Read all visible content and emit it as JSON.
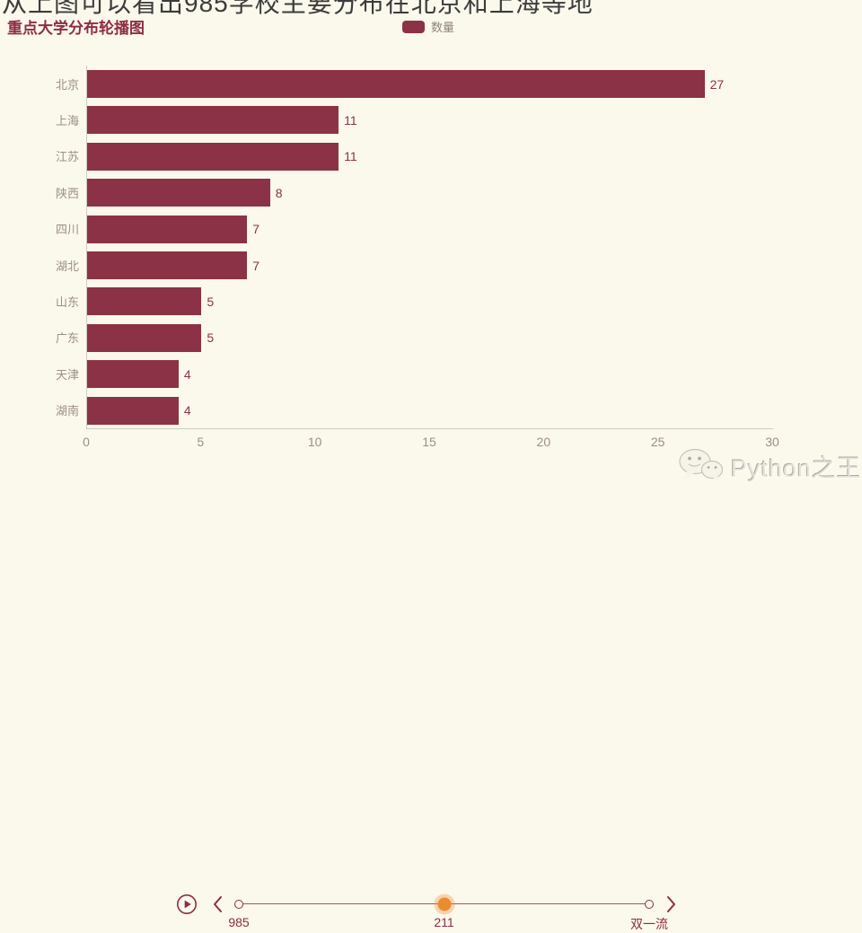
{
  "page": {
    "clipped_top_text": "从上图可以看出985学校主要分布在北京和上海等地",
    "title": "重点大学分布轮播图",
    "watermark_text": "Python之王"
  },
  "legend": {
    "label": "数量"
  },
  "colors": {
    "background": "#FBF8EC",
    "bar": "#8C3246",
    "title": "#8D2D44",
    "axis_label": "#9C9084",
    "legend_label": "#8F8576",
    "axis_line": "#CFCBC0",
    "timeline": "#8B2E43",
    "timeline_line": "#9B5A68",
    "timeline_active": "#EC8C30",
    "top_text": "#3C3C3C"
  },
  "chart_data": {
    "type": "bar",
    "orientation": "horizontal",
    "title": "重点大学分布轮播图",
    "categories": [
      "北京",
      "上海",
      "江苏",
      "陕西",
      "四川",
      "湖北",
      "山东",
      "广东",
      "天津",
      "湖南"
    ],
    "series": [
      {
        "name": "数量",
        "values": [
          27,
          11,
          11,
          8,
          7,
          7,
          5,
          5,
          4,
          4
        ]
      }
    ],
    "xlabel": "",
    "ylabel": "",
    "xlim": [
      0,
      30
    ],
    "x_ticks": [
      "0",
      "5",
      "10",
      "15",
      "20",
      "25",
      "30"
    ],
    "grid": false,
    "legend_position": "top-center",
    "value_labels": true
  },
  "timeline": {
    "nodes": [
      {
        "label": "985",
        "active": false
      },
      {
        "label": "211",
        "active": true
      },
      {
        "label": "双一流",
        "active": false
      }
    ]
  },
  "icons": {
    "play": "play-button-icon",
    "prev": "chevron-left-icon",
    "next": "chevron-right-icon",
    "watermark_logo": "wechat-icon"
  }
}
